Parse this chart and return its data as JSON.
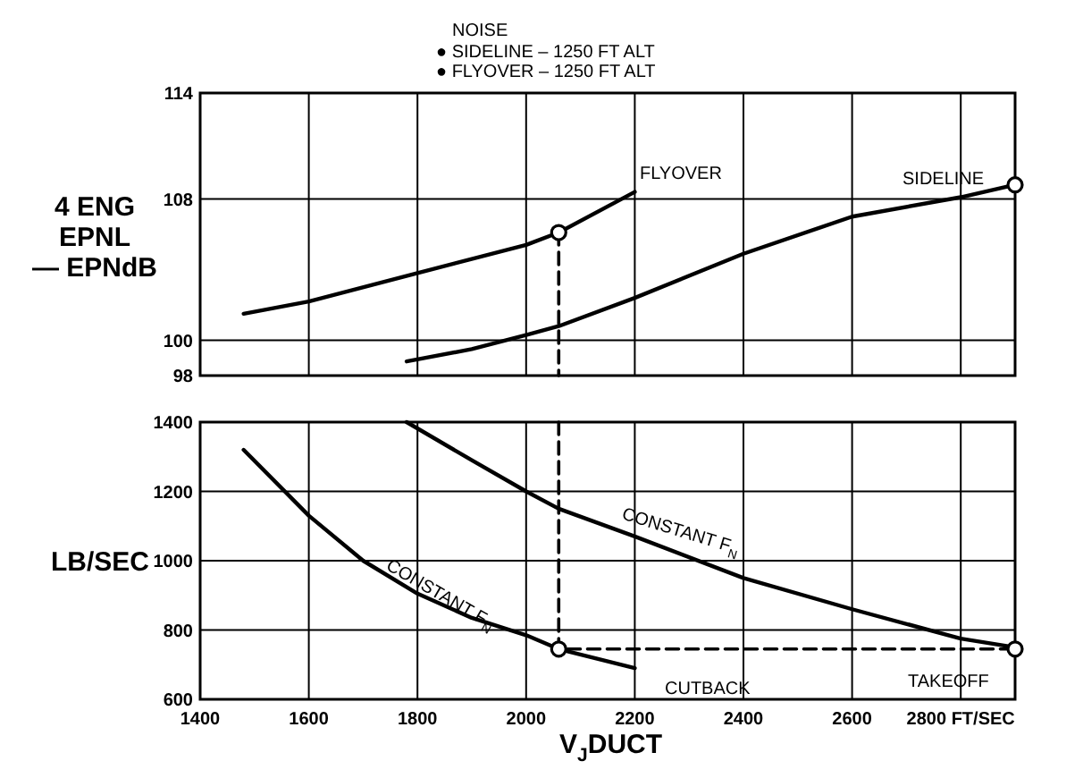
{
  "chart_data": [
    {
      "type": "line",
      "title": "NOISE",
      "ylabel": "4 ENG\nEPNL\n— EPNdB",
      "xlim": [
        1400,
        2900
      ],
      "xticks": [
        1400,
        1600,
        1800,
        2000,
        2200,
        2400,
        2600,
        2800
      ],
      "ylim": [
        98,
        114
      ],
      "yticks": [
        98,
        100,
        108,
        114
      ],
      "grid": true,
      "tick_labels": "y",
      "annotations": [
        "● SIDELINE – 1250 FT ALT",
        "● FLYOVER – 1250 FT ALT",
        "FLYOVER",
        "SIDELINE"
      ],
      "series": [
        {
          "type": "line",
          "color": "#000000",
          "marker": "none",
          "line_style": "solid",
          "x": [
            1480,
            1600,
            1800,
            2000,
            2060,
            2200
          ],
          "values": [
            101.5,
            102.2,
            103.8,
            105.4,
            106.1,
            108.4
          ]
        },
        {
          "type": "line",
          "color": "#000000",
          "marker": "none",
          "line_style": "solid",
          "x": [
            1780,
            1900,
            2000,
            2060,
            2200,
            2400,
            2600,
            2800,
            2900
          ],
          "values": [
            98.8,
            99.5,
            100.3,
            100.8,
            102.4,
            104.9,
            107.0,
            108.1,
            108.8
          ]
        },
        {
          "type": "line",
          "color": "#000000",
          "marker": "none",
          "line_style": "dashed",
          "x": [
            2060,
            2060
          ],
          "values": [
            106.1,
            98
          ]
        },
        {
          "type": "scatter",
          "color": "#000000",
          "marker": "circle",
          "x": [
            2060,
            2900
          ],
          "values": [
            106.1,
            108.8
          ]
        }
      ]
    },
    {
      "type": "line",
      "ylabel": "LB/SEC",
      "xlabel": "V$_{J}$DUCT",
      "xlim": [
        1400,
        2900
      ],
      "xticks": [
        1400,
        1600,
        1800,
        2000,
        2200,
        2400,
        2600,
        {
          "value": 2800,
          "label": "2800 FT/SEC"
        }
      ],
      "ylim": [
        600,
        1400
      ],
      "yticks": [
        600,
        800,
        1000,
        1200,
        1400
      ],
      "grid": true,
      "annotations": [
        "CONSTANT F$_{N}$",
        "CONSTANT F$_{N}$",
        "CUTBACK",
        "TAKEOFF"
      ],
      "series": [
        {
          "type": "line",
          "color": "#000000",
          "marker": "none",
          "line_style": "solid",
          "x": [
            1480,
            1600,
            1700,
            1800,
            1900,
            2000,
            2060,
            2200
          ],
          "values": [
            1320,
            1130,
            1000,
            905,
            835,
            785,
            745,
            690
          ]
        },
        {
          "type": "line",
          "color": "#000000",
          "marker": "none",
          "line_style": "solid",
          "x": [
            1780,
            1900,
            2000,
            2060,
            2200,
            2400,
            2600,
            2800,
            2900
          ],
          "values": [
            1400,
            1290,
            1200,
            1150,
            1070,
            950,
            860,
            775,
            750
          ]
        },
        {
          "type": "line",
          "color": "#000000",
          "marker": "none",
          "line_style": "dashed",
          "x": [
            2060,
            2060,
            2900
          ],
          "values": [
            1400,
            745,
            745
          ]
        },
        {
          "type": "scatter",
          "color": "#000000",
          "marker": "circle",
          "x": [
            2060,
            2900
          ],
          "values": [
            745,
            745
          ]
        }
      ]
    }
  ]
}
